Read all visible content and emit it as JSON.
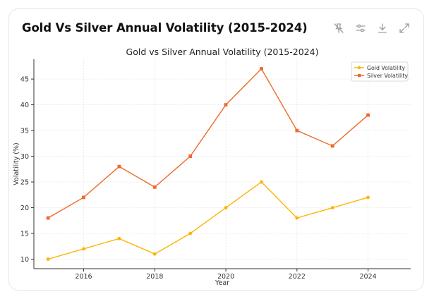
{
  "header": {
    "title": "Gold Vs Silver Annual Volatility (2015-2024)",
    "icons": [
      "pin-off-icon",
      "sliders-icon",
      "download-icon",
      "expand-icon"
    ]
  },
  "colors": {
    "gold": "#FFB300",
    "silver": "#EE6A2A",
    "grid": "#e8e8e8",
    "axis": "#333333"
  },
  "chart_data": {
    "type": "line",
    "title": "Gold vs Silver Annual Volatility (2015-2024)",
    "xlabel": "Year",
    "ylabel": "Volatility (%)",
    "x": [
      2015,
      2016,
      2017,
      2018,
      2019,
      2020,
      2021,
      2022,
      2023,
      2024
    ],
    "xticks": [
      2016,
      2018,
      2020,
      2022,
      2024
    ],
    "yticks": [
      10,
      15,
      20,
      25,
      30,
      35,
      40,
      45
    ],
    "xlim": [
      2014.6,
      2025.2
    ],
    "ylim": [
      8.15,
      48.85
    ],
    "grid": true,
    "legend_position": "top-right",
    "series": [
      {
        "name": "Gold Volatility",
        "marker": "circle",
        "values": [
          10,
          12,
          14,
          11,
          15,
          20,
          25,
          18,
          20,
          22
        ]
      },
      {
        "name": "Silver Volatility",
        "marker": "square",
        "values": [
          18,
          22,
          28,
          24,
          30,
          40,
          47,
          35,
          32,
          38
        ]
      }
    ]
  }
}
